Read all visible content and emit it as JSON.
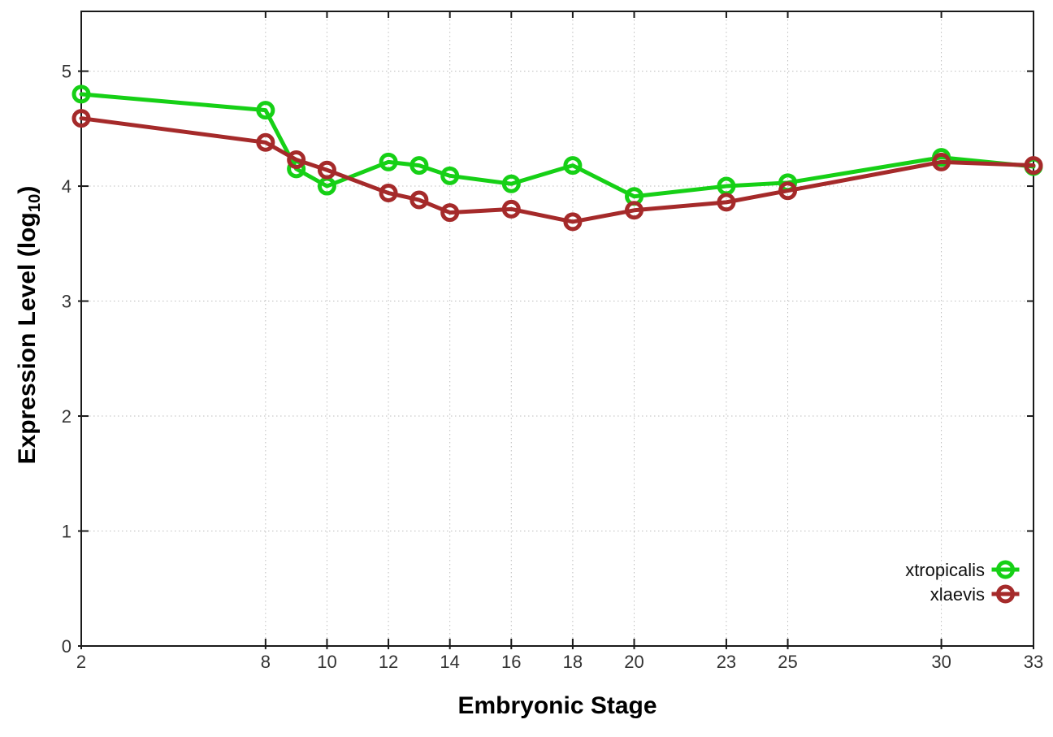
{
  "chart_data": {
    "type": "line",
    "title": "",
    "xlabel": "Embryonic Stage",
    "ylabel": "Expression Level (log10)",
    "ylabel_parts": {
      "pre": "Expression Level (log",
      "sub": "10",
      "post": ")"
    },
    "x": [
      2,
      8,
      9,
      10,
      12,
      13,
      14,
      16,
      18,
      20,
      23,
      25,
      30,
      33
    ],
    "x_tick_labels": [
      2,
      8,
      10,
      12,
      14,
      16,
      18,
      20,
      23,
      25,
      30,
      33
    ],
    "y_tick_labels": [
      0,
      1,
      2,
      3,
      4,
      5
    ],
    "xlim": [
      2,
      33
    ],
    "ylim": [
      0,
      5.52
    ],
    "grid": true,
    "grid_style": "dotted",
    "marker": "open-circle",
    "legend_position": "bottom-right-inside",
    "series": [
      {
        "name": "xtropicalis",
        "color": "#16d016",
        "values": [
          4.8,
          4.66,
          4.15,
          4.0,
          4.21,
          4.18,
          4.09,
          4.02,
          4.18,
          3.91,
          4.0,
          4.03,
          4.25,
          4.17
        ]
      },
      {
        "name": "xlaevis",
        "color": "#a52a2a",
        "values": [
          4.59,
          4.38,
          4.23,
          4.14,
          3.94,
          3.88,
          3.77,
          3.8,
          3.69,
          3.79,
          3.86,
          3.96,
          4.21,
          4.18
        ]
      }
    ],
    "colors": {
      "axis": "#1a1a1a",
      "grid": "#bdbdbd",
      "tick_label": "#333333",
      "legend_text": "#111111",
      "background": "#ffffff"
    }
  }
}
